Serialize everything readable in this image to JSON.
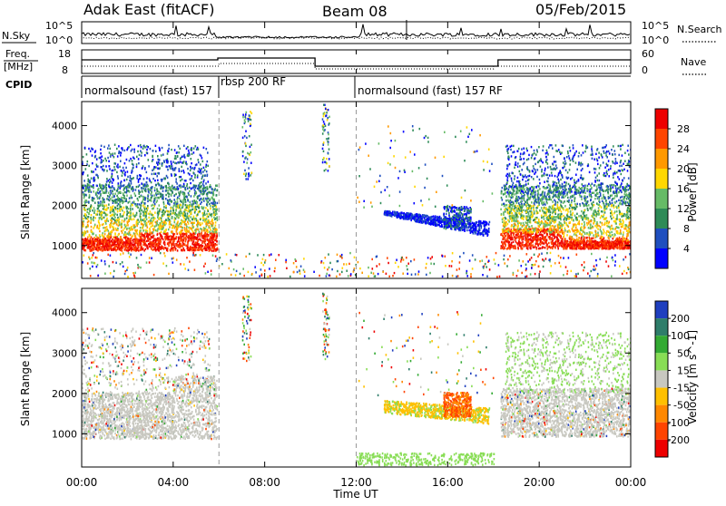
{
  "header": {
    "title": "Adak East (fitACF)",
    "beam": "Beam 08",
    "date": "05/Feb/2015"
  },
  "time_axis": {
    "label": "Time UT",
    "ticks": [
      "00:00",
      "04:00",
      "08:00",
      "12:00",
      "16:00",
      "20:00",
      "00:00"
    ]
  },
  "nsky_panel": {
    "left_label": "N.Sky",
    "right_label": "N.Search",
    "left_ticks": [
      "10^5",
      "10^0"
    ],
    "right_ticks": [
      "10^5",
      "10^0"
    ]
  },
  "freq_panel": {
    "left_label_line1": "Freq.",
    "left_label_line2": "[MHz]",
    "right_label": "Nave",
    "left_ticks": [
      "18",
      "8"
    ],
    "right_ticks": [
      "60",
      "0"
    ]
  },
  "cpid_panel": {
    "label": "CPID",
    "modes": [
      "normalsound (fast) 157",
      "rbsp 200 RF",
      "normalsound (fast) 157 RF"
    ]
  },
  "chart_data": [
    {
      "type": "heatmap",
      "panel": "power",
      "ylabel": "Slant Range [km]",
      "yticks": [
        1000,
        2000,
        3000,
        4000
      ],
      "xlim": [
        0,
        24
      ],
      "ylim": [
        180,
        4600
      ],
      "colorbar_label": "Power [dB]",
      "colorbar_ticks": [
        4,
        8,
        12,
        16,
        20,
        24,
        28
      ],
      "colors": [
        "#0000ff",
        "#1f4fbf",
        "#2e8b57",
        "#66bb66",
        "#ffd700",
        "#ff9900",
        "#ff4500",
        "#ee0000"
      ],
      "grid_lines_at_hours": [
        6,
        12
      ]
    },
    {
      "type": "heatmap",
      "panel": "velocity",
      "ylabel": "Slant Range [km]",
      "yticks": [
        1000,
        2000,
        3000,
        4000
      ],
      "xlim": [
        0,
        24
      ],
      "ylim": [
        180,
        4600
      ],
      "colorbar_label": "Velocity [m s^-1]",
      "colorbar_ticks": [
        200,
        100,
        50,
        15,
        -15,
        -50,
        -100,
        -200
      ],
      "colors": [
        "#1f3fbf",
        "#2e7d6a",
        "#33aa33",
        "#88dd55",
        "#c8c8c0",
        "#ffc000",
        "#ff8800",
        "#ff4400",
        "#ee0000"
      ],
      "grid_lines_at_hours": [
        6,
        12
      ]
    }
  ]
}
